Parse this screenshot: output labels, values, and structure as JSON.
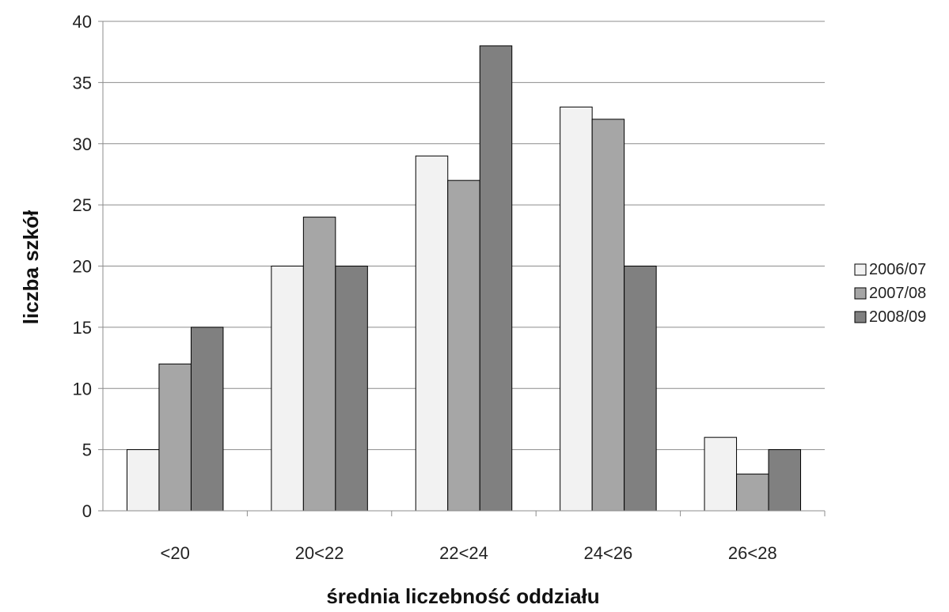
{
  "chart_data": {
    "type": "bar",
    "title": "",
    "xlabel": "średnia liczebność oddziału",
    "ylabel": "liczba  szkół",
    "categories": [
      "<20",
      "20<22",
      "22<24",
      "24<26",
      "26<28"
    ],
    "ylim": [
      0,
      40
    ],
    "yticks": [
      0,
      5,
      10,
      15,
      20,
      25,
      30,
      35,
      40
    ],
    "grid": true,
    "legend_position": "right",
    "series": [
      {
        "name": "2006/07",
        "color": "#f2f2f2",
        "values": [
          5,
          20,
          29,
          33,
          6
        ]
      },
      {
        "name": "2007/08",
        "color": "#a6a6a6",
        "values": [
          12,
          24,
          27,
          32,
          3
        ]
      },
      {
        "name": "2008/09",
        "color": "#808080",
        "values": [
          15,
          20,
          38,
          20,
          5
        ]
      }
    ]
  }
}
